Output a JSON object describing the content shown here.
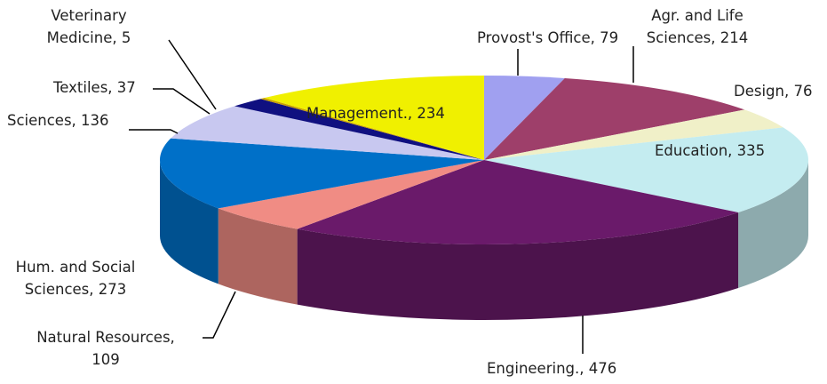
{
  "chart_data": {
    "type": "pie",
    "three_d": true,
    "values": [
      79,
      214,
      76,
      335,
      476,
      109,
      273,
      136,
      37,
      5,
      234
    ],
    "value_labels": [
      "Provost's Office, 79",
      "Agr. and Life\nSciences, 214",
      "Design, 76",
      "Education, 335",
      "Engineering., 476",
      "Natural Resources,\n109",
      "Hum. and Social\nSciences, 273",
      "Sciences, 136",
      "Textiles, 37",
      "Veterinary\nMedicine, 5",
      "Management., 234"
    ],
    "colors": [
      "#a0a0f0",
      "#9e3f6a",
      "#f0f0c8",
      "#c4ecf0",
      "#6a1a6a",
      "#f08c84",
      "#0070c8",
      "#c8c8f0",
      "#101080",
      "#c8a000",
      "#f0f000"
    ]
  }
}
